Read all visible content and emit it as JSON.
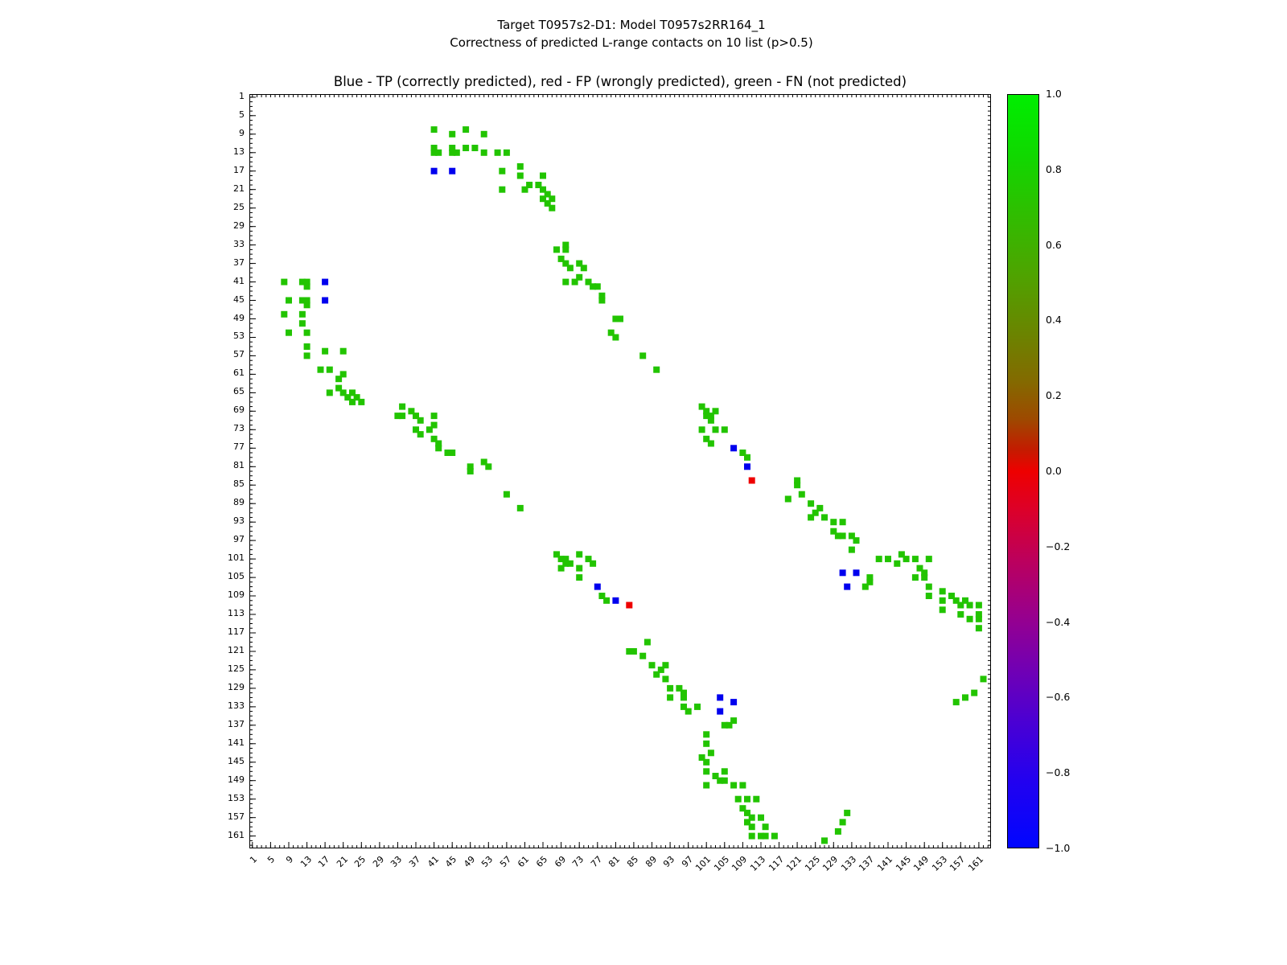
{
  "figure": {
    "suptitle_line1": "Target T0957s2-D1: Model T0957s2RR164_1",
    "suptitle_line2": "Correctness of predicted L-range contacts on 10 list (p>0.5)",
    "plot_title": "Blue - TP (correctly predicted), red - FP (wrongly predicted), green - FN (not predicted)"
  },
  "chart_data": {
    "type": "scatter",
    "title": "Blue - TP (correctly predicted), red - FP (wrongly predicted), green - FN (not predicted)",
    "xlabel": "",
    "ylabel": "",
    "x_range": [
      0.5,
      163.5
    ],
    "y_range": [
      0.5,
      163.5
    ],
    "y_inverted": true,
    "grid": false,
    "symmetric_matrix": true,
    "tick_values": [
      1,
      5,
      9,
      13,
      17,
      21,
      25,
      29,
      33,
      37,
      41,
      45,
      49,
      53,
      57,
      61,
      65,
      69,
      73,
      77,
      81,
      85,
      89,
      93,
      97,
      101,
      105,
      109,
      113,
      117,
      121,
      125,
      129,
      133,
      137,
      141,
      145,
      149,
      153,
      157,
      161
    ],
    "legend": {
      "blue": "TP (correctly predicted)",
      "red": "FP (wrongly predicted)",
      "green": "FN (not predicted)"
    },
    "colors": {
      "tp": "#0000ee",
      "fp": "#ee0000",
      "fn": "#22c400"
    },
    "tp_pairs": [
      [
        17,
        41
      ],
      [
        17,
        45
      ],
      [
        77,
        107
      ],
      [
        81,
        110
      ],
      [
        104,
        131
      ],
      [
        104,
        134
      ],
      [
        107,
        132
      ]
    ],
    "fp_pairs": [
      [
        84,
        111
      ]
    ],
    "fn_pairs": [
      [
        8,
        41
      ],
      [
        12,
        41
      ],
      [
        13,
        41
      ],
      [
        13,
        42
      ],
      [
        9,
        45
      ],
      [
        12,
        45
      ],
      [
        13,
        45
      ],
      [
        13,
        46
      ],
      [
        8,
        48
      ],
      [
        12,
        48
      ],
      [
        12,
        50
      ],
      [
        9,
        52
      ],
      [
        13,
        52
      ],
      [
        13,
        55
      ],
      [
        13,
        57
      ],
      [
        16,
        60
      ],
      [
        17,
        56
      ],
      [
        18,
        60
      ],
      [
        18,
        65
      ],
      [
        20,
        62
      ],
      [
        20,
        64
      ],
      [
        21,
        56
      ],
      [
        21,
        61
      ],
      [
        21,
        65
      ],
      [
        22,
        66
      ],
      [
        23,
        65
      ],
      [
        23,
        67
      ],
      [
        24,
        66
      ],
      [
        25,
        67
      ],
      [
        33,
        70
      ],
      [
        34,
        68
      ],
      [
        34,
        70
      ],
      [
        36,
        69
      ],
      [
        37,
        70
      ],
      [
        37,
        73
      ],
      [
        38,
        71
      ],
      [
        38,
        74
      ],
      [
        40,
        73
      ],
      [
        41,
        70
      ],
      [
        41,
        72
      ],
      [
        41,
        75
      ],
      [
        42,
        76
      ],
      [
        42,
        77
      ],
      [
        44,
        78
      ],
      [
        45,
        78
      ],
      [
        49,
        81
      ],
      [
        49,
        82
      ],
      [
        52,
        80
      ],
      [
        53,
        81
      ],
      [
        57,
        87
      ],
      [
        60,
        90
      ],
      [
        68,
        100
      ],
      [
        69,
        101
      ],
      [
        69,
        103
      ],
      [
        70,
        101
      ],
      [
        70,
        102
      ],
      [
        71,
        102
      ],
      [
        73,
        100
      ],
      [
        73,
        103
      ],
      [
        73,
        105
      ],
      [
        75,
        101
      ],
      [
        76,
        102
      ],
      [
        78,
        109
      ],
      [
        79,
        110
      ],
      [
        84,
        121
      ],
      [
        85,
        121
      ],
      [
        87,
        122
      ],
      [
        88,
        119
      ],
      [
        89,
        124
      ],
      [
        90,
        126
      ],
      [
        91,
        125
      ],
      [
        92,
        124
      ],
      [
        92,
        127
      ],
      [
        93,
        129
      ],
      [
        93,
        131
      ],
      [
        95,
        129
      ],
      [
        96,
        130
      ],
      [
        96,
        131
      ],
      [
        96,
        133
      ],
      [
        97,
        134
      ],
      [
        99,
        133
      ],
      [
        100,
        144
      ],
      [
        101,
        139
      ],
      [
        101,
        141
      ],
      [
        101,
        145
      ],
      [
        101,
        147
      ],
      [
        101,
        150
      ],
      [
        102,
        143
      ],
      [
        103,
        148
      ],
      [
        104,
        149
      ],
      [
        105,
        137
      ],
      [
        105,
        147
      ],
      [
        105,
        149
      ],
      [
        106,
        137
      ],
      [
        107,
        136
      ],
      [
        107,
        150
      ],
      [
        108,
        153
      ],
      [
        109,
        150
      ],
      [
        109,
        155
      ],
      [
        110,
        153
      ],
      [
        110,
        156
      ],
      [
        110,
        158
      ],
      [
        111,
        157
      ],
      [
        111,
        159
      ],
      [
        111,
        161
      ],
      [
        112,
        153
      ],
      [
        113,
        157
      ],
      [
        113,
        161
      ],
      [
        114,
        159
      ],
      [
        114,
        161
      ],
      [
        116,
        161
      ],
      [
        127,
        162
      ],
      [
        130,
        160
      ],
      [
        131,
        158
      ],
      [
        132,
        156
      ]
    ],
    "colorbar": {
      "min": -1.0,
      "max": 1.0,
      "tick_labels": [
        "1.0",
        "0.8",
        "0.6",
        "0.4",
        "0.2",
        "0.0",
        "−0.2",
        "−0.4",
        "−0.6",
        "−0.8",
        "−1.0"
      ],
      "gradient_stops": [
        [
          0,
          "#00ee00"
        ],
        [
          8,
          "#10d800"
        ],
        [
          16,
          "#30bd00"
        ],
        [
          24,
          "#4fa300"
        ],
        [
          31,
          "#688700"
        ],
        [
          38,
          "#836a00"
        ],
        [
          43,
          "#9d4a00"
        ],
        [
          47,
          "#c21d00"
        ],
        [
          50,
          "#ee0000"
        ],
        [
          55,
          "#dd0028"
        ],
        [
          62,
          "#bb005e"
        ],
        [
          69,
          "#99008c"
        ],
        [
          76,
          "#7300b2"
        ],
        [
          83,
          "#4c00d2"
        ],
        [
          91,
          "#2301ef"
        ],
        [
          100,
          "#0006ff"
        ]
      ]
    }
  }
}
